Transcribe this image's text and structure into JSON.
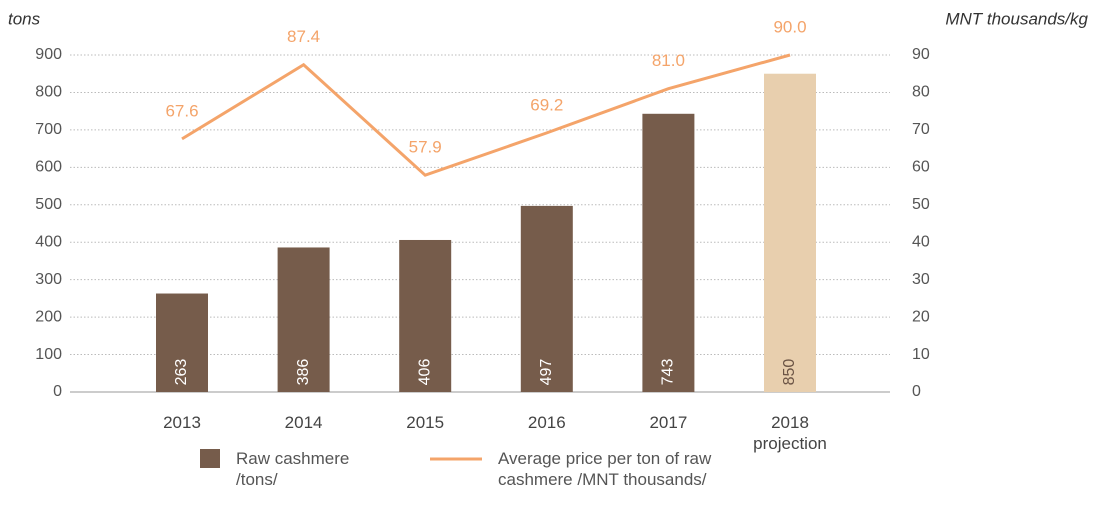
{
  "chart_data": {
    "type": "combo",
    "y_label": "tons",
    "y2_label": "MNT thousands/kg",
    "categories": [
      "2013",
      "2014",
      "2015",
      "2016",
      "2017",
      "2018 projection"
    ],
    "series": [
      {
        "name": "Raw cashmere /tons/",
        "type": "bar",
        "colors": [
          "#765c4b",
          "#765c4b",
          "#765c4b",
          "#765c4b",
          "#765c4b",
          "#e8cfae"
        ],
        "color": "#765c4b",
        "values": [
          263,
          386,
          406,
          497,
          743,
          850
        ]
      },
      {
        "name": "Average price per ton of raw cashmere /MNT thousands/",
        "type": "line",
        "axis": "y2",
        "color": "#f4a46a",
        "values": [
          67.6,
          87.4,
          57.9,
          69.2,
          81.0,
          90.0
        ],
        "value_labels": [
          "67.6",
          "87.4",
          "57.9",
          "69.2",
          "81.0",
          "90.0"
        ]
      }
    ],
    "ylim": [
      0,
      900
    ],
    "yticks": [
      0,
      100,
      200,
      300,
      400,
      500,
      600,
      700,
      800,
      900
    ],
    "y2lim": [
      0,
      90
    ],
    "y2ticks": [
      0,
      10,
      20,
      30,
      40,
      50,
      60,
      70,
      80,
      90
    ],
    "grid": true
  }
}
